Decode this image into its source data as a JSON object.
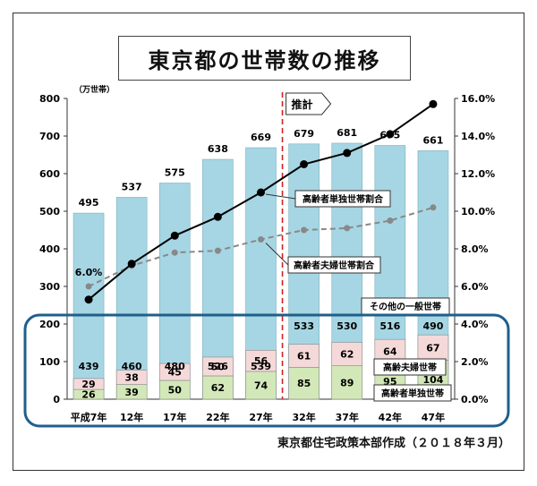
{
  "title": "東京都の世帯数の推移",
  "credit": "東京都住宅政策本部作成（２０１８年３月）",
  "colors": {
    "total_bar": "#a6d6e3",
    "other_general": "#a6d6e3",
    "elderly_couple": "#f5d9d9",
    "elderly_single": "#d3e8b8",
    "single_line": "#000000",
    "couple_line": "#888888",
    "estimate_line": "#d42020",
    "highlight_box": "#1f5f8b"
  },
  "chart_data": {
    "type": "bar",
    "categories": [
      "平成7年",
      "12年",
      "17年",
      "22年",
      "27年",
      "32年",
      "37年",
      "42年",
      "47年"
    ],
    "y_unit": "（万世帯）",
    "ylim": [
      0,
      800
    ],
    "y_ticks": [
      "0",
      "100",
      "200",
      "300",
      "400",
      "500",
      "600",
      "700",
      "800"
    ],
    "y2lim": [
      0,
      16
    ],
    "y2_ticks": [
      "0.0%",
      "2.0%",
      "4.0%",
      "6.0%",
      "8.0%",
      "10.0%",
      "12.0%",
      "14.0%",
      "16.0%"
    ],
    "totals": [
      495,
      537,
      575,
      638,
      669,
      679,
      681,
      675,
      661
    ],
    "series": [
      {
        "name": "高齢者単独世帯",
        "values": [
          26,
          39,
          50,
          62,
          74,
          85,
          89,
          95,
          104
        ]
      },
      {
        "name": "高齢夫婦世帯",
        "values": [
          29,
          38,
          45,
          50,
          56,
          61,
          62,
          64,
          67
        ]
      },
      {
        "name": "その他の一般世帯",
        "values": [
          439,
          460,
          480,
          526,
          539,
          533,
          530,
          516,
          490
        ]
      }
    ],
    "lines": [
      {
        "name": "高齢者単独世帯割合",
        "values": [
          5.3,
          7.2,
          8.7,
          9.7,
          11.0,
          12.5,
          13.1,
          14.1,
          15.7
        ]
      },
      {
        "name": "高齢者夫婦世帯割合",
        "values": [
          6.0,
          7.1,
          7.8,
          7.9,
          8.5,
          9.0,
          9.1,
          9.5,
          10.2
        ]
      }
    ],
    "first_point_label": "6.0%",
    "estimate_label": "推計",
    "estimate_start_index": 5
  }
}
